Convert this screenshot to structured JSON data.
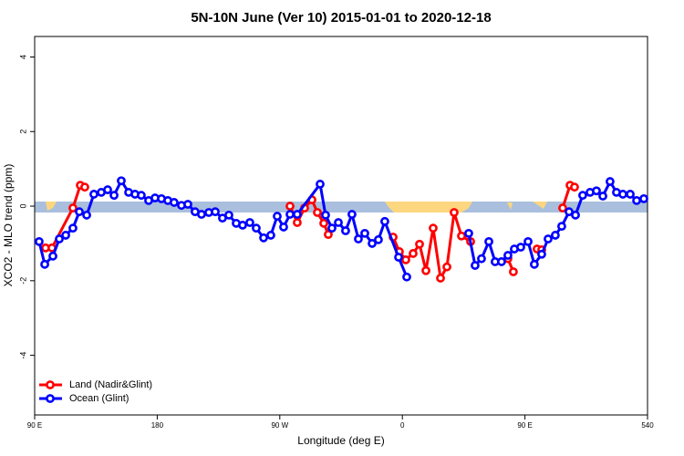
{
  "chart_data": {
    "type": "line",
    "title": "5N-10N June (Ver 10)   2015-01-01 to 2020-12-18",
    "x_label": "Longitude (deg E)",
    "y_label": "XCO2 - MLO trend (ppm)",
    "xlim": [
      90,
      540
    ],
    "ylim": [
      -5.6,
      4.55
    ],
    "xticks": [
      {
        "value": 90,
        "label": "90 E"
      },
      180,
      {
        "value": 270,
        "label": "90 W"
      },
      {
        "value": 360,
        "label": "0"
      },
      {
        "value": 450,
        "label": "90 E"
      },
      540
    ],
    "yticks": [
      -4,
      -2,
      0,
      2,
      4
    ],
    "grid": false,
    "legend": "bottomleft",
    "series": [
      {
        "name": "Land (Nadir&Glint)",
        "color": "#ff0000",
        "x": [
          98.0,
          102.7,
          118.1,
          123.5,
          126.8,
          null,
          277.5,
          282.8,
          288.2,
          293.6,
          297.6,
          302.3,
          305.6,
          null,
          353.2,
          357.8,
          362.5,
          367.9,
          372.6,
          377.3,
          382.6,
          388.0,
          392.7,
          398.0,
          403.4,
          410.1,
          null,
          437.5,
          441.5,
          null,
          458.9,
          462.3,
          null,
          477.7,
          483.1,
          486.4
        ],
        "values": [
          -1.12,
          -1.12,
          -0.05,
          0.56,
          0.51,
          null,
          0.0,
          -0.44,
          -0.05,
          0.17,
          -0.17,
          -0.46,
          -0.76,
          null,
          -0.83,
          -1.22,
          -1.44,
          -1.27,
          -1.02,
          -1.73,
          -0.59,
          -1.93,
          -1.63,
          -0.17,
          -0.8,
          -0.95,
          null,
          -1.41,
          -1.76,
          null,
          -1.15,
          -1.17,
          null,
          -0.05,
          0.56,
          0.51
        ]
      },
      {
        "name": "Ocean (Glint)",
        "color": "#0000ff",
        "x": [
          93.3,
          97.4,
          103.4,
          108.1,
          112.8,
          118.1,
          122.8,
          128.2,
          133.5,
          138.9,
          143.6,
          148.3,
          153.6,
          159.0,
          163.7,
          168.3,
          173.7,
          178.4,
          183.1,
          187.8,
          192.4,
          197.8,
          202.5,
          207.8,
          212.5,
          217.9,
          222.6,
          227.9,
          232.6,
          238.0,
          242.7,
          248.0,
          252.7,
          258.1,
          263.4,
          268.1,
          272.8,
          277.5,
          282.8,
          299.6,
          303.6,
          308.3,
          313.0,
          318.3,
          323.0,
          327.7,
          332.4,
          337.8,
          342.4,
          347.1,
          357.2,
          363.2,
          null,
          408.7,
          413.4,
          418.1,
          423.5,
          428.1,
          432.8,
          437.5,
          442.2,
          446.9,
          452.3,
          456.9,
          462.3,
          467.0,
          472.3,
          477.0,
          482.4,
          487.1,
          492.4,
          497.8,
          502.5,
          507.2,
          512.5,
          517.2,
          521.9,
          527.3,
          532.0,
          537.3
        ],
        "values": [
          -0.95,
          -1.56,
          -1.34,
          -0.88,
          -0.78,
          -0.59,
          -0.15,
          -0.24,
          0.32,
          0.37,
          0.44,
          0.29,
          0.68,
          0.37,
          0.32,
          0.29,
          0.15,
          0.22,
          0.2,
          0.15,
          0.1,
          0.02,
          0.05,
          -0.15,
          -0.22,
          -0.17,
          -0.15,
          -0.32,
          -0.24,
          -0.46,
          -0.51,
          -0.44,
          -0.59,
          -0.85,
          -0.78,
          -0.27,
          -0.56,
          -0.22,
          -0.22,
          0.59,
          -0.24,
          -0.59,
          -0.44,
          -0.66,
          -0.22,
          -0.88,
          -0.73,
          -1.0,
          -0.9,
          -0.41,
          -1.37,
          -1.9,
          null,
          -0.73,
          -1.59,
          -1.41,
          -0.95,
          -1.49,
          -1.49,
          -1.32,
          -1.15,
          -1.1,
          -0.95,
          -1.56,
          -1.29,
          -0.88,
          -0.78,
          -0.54,
          -0.15,
          -0.24,
          0.29,
          0.37,
          0.41,
          0.27,
          0.66,
          0.37,
          0.32,
          0.32,
          0.15,
          0.2
        ]
      }
    ]
  }
}
